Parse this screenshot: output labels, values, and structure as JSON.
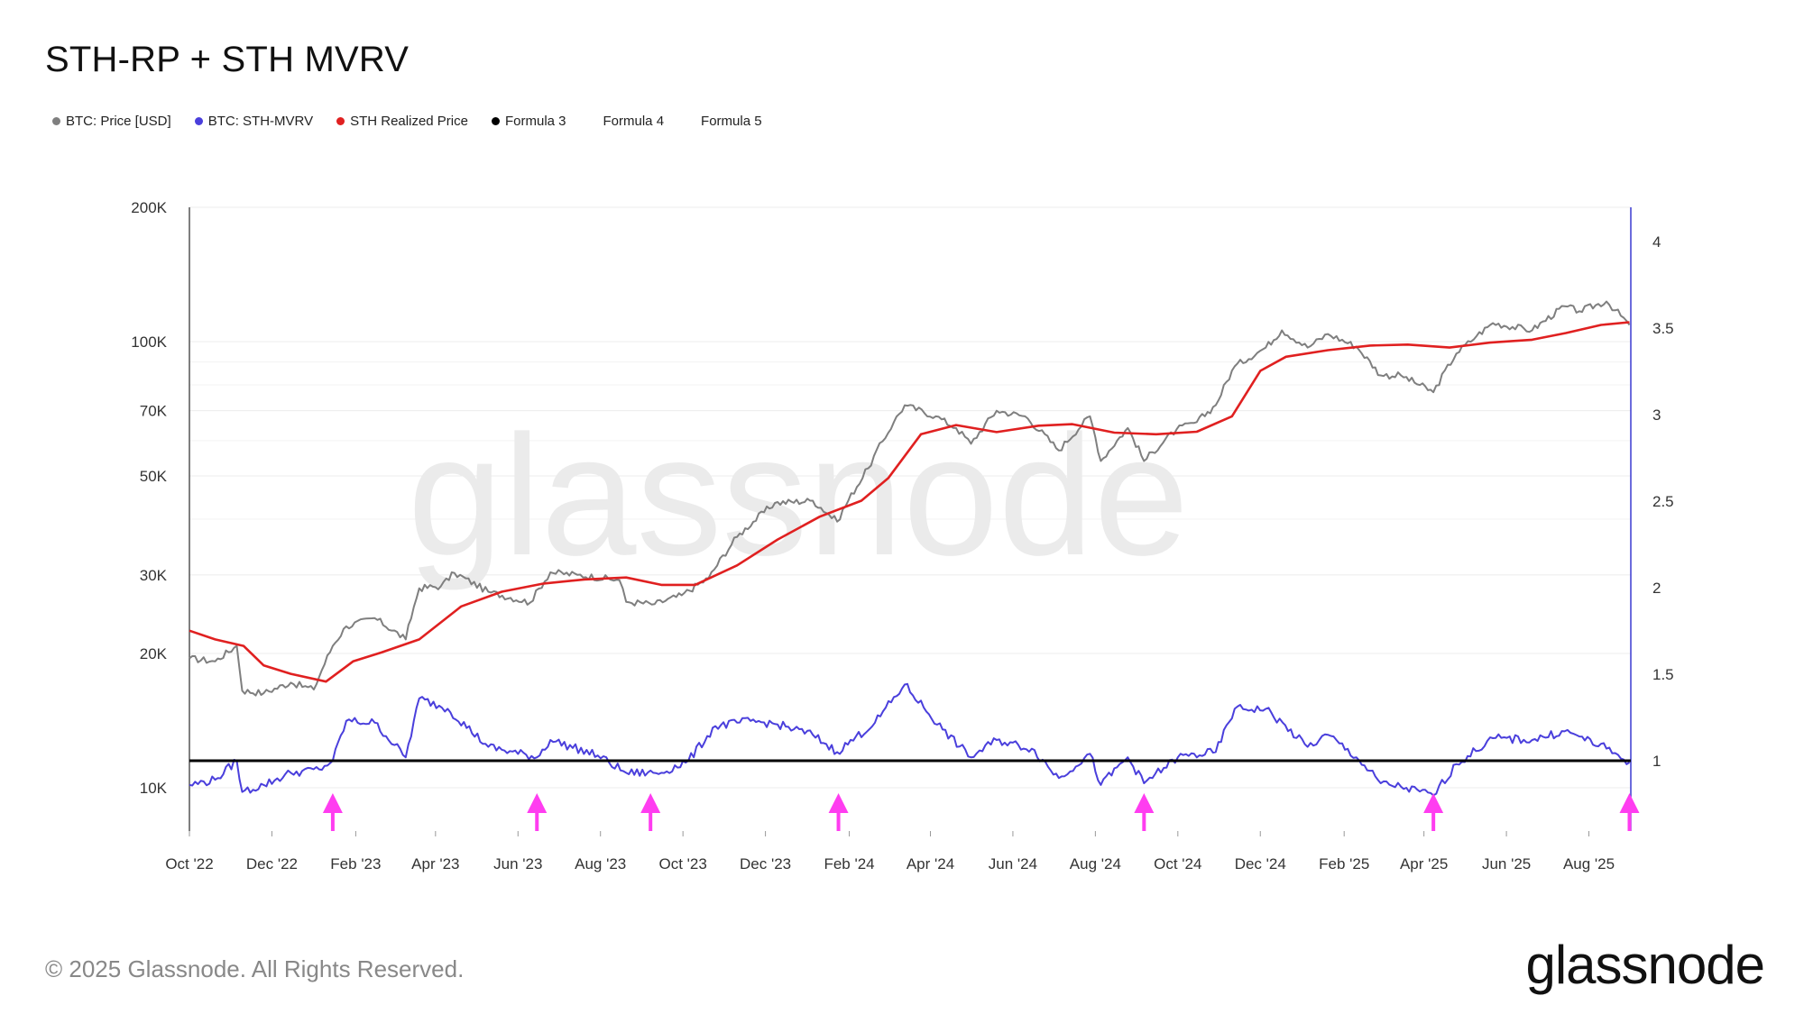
{
  "title": "STH-RP + STH MVRV",
  "legend": [
    {
      "label": "BTC: Price [USD]",
      "color": "#7f7f7f",
      "dot": true
    },
    {
      "label": "BTC: STH-MVRV",
      "color": "#4a3fdc",
      "dot": true
    },
    {
      "label": "STH Realized Price",
      "color": "#e02020",
      "dot": true
    },
    {
      "label": "Formula 3",
      "color": "#000000",
      "dot": true
    },
    {
      "label": "Formula 4",
      "color": "#000000",
      "dot": false
    },
    {
      "label": "Formula 5",
      "color": "#000000",
      "dot": false
    }
  ],
  "footer": "© 2025 Glassnode. All Rights Reserved.",
  "logo": "glassnode",
  "watermark": "glassnode",
  "chart_data": {
    "type": "line",
    "x_ticks": [
      "Oct '22",
      "Dec '22",
      "Feb '23",
      "Apr '23",
      "Jun '23",
      "Aug '23",
      "Oct '23",
      "Dec '23",
      "Feb '24",
      "Apr '24",
      "Jun '24",
      "Aug '24",
      "Oct '24",
      "Dec '24",
      "Feb '25",
      "Apr '25",
      "Jun '25",
      "Aug '25"
    ],
    "y_left": {
      "scale": "log",
      "ticks": [
        10000,
        20000,
        30000,
        50000,
        70000,
        100000,
        200000
      ],
      "tick_labels": [
        "10K",
        "20K",
        "30K",
        "50K",
        "70K",
        "100K",
        "200K"
      ]
    },
    "y_right": {
      "scale": "linear",
      "ticks": [
        1,
        1.5,
        2,
        2.5,
        3,
        3.5,
        4
      ],
      "tick_labels": [
        "1",
        "1.5",
        "2",
        "2.5",
        "3",
        "3.5",
        "4"
      ],
      "range": [
        0.7,
        4.2
      ]
    },
    "x_range": [
      "2022-10-01",
      "2025-09-01"
    ],
    "series": [
      {
        "name": "BTC: Price [USD]",
        "axis": "left",
        "color": "#7f7f7f",
        "x": [
          "2022-10-01",
          "2022-10-20",
          "2022-11-05",
          "2022-11-09",
          "2022-11-25",
          "2022-12-15",
          "2023-01-01",
          "2023-01-15",
          "2023-01-25",
          "2023-02-15",
          "2023-03-10",
          "2023-03-20",
          "2023-04-05",
          "2023-04-15",
          "2023-05-10",
          "2023-06-10",
          "2023-06-25",
          "2023-07-15",
          "2023-08-15",
          "2023-08-20",
          "2023-09-10",
          "2023-09-30",
          "2023-10-20",
          "2023-11-10",
          "2023-12-08",
          "2024-01-05",
          "2024-01-23",
          "2024-02-15",
          "2024-03-05",
          "2024-03-13",
          "2024-04-05",
          "2024-04-20",
          "2024-05-01",
          "2024-05-20",
          "2024-06-10",
          "2024-07-05",
          "2024-07-28",
          "2024-08-05",
          "2024-08-25",
          "2024-09-06",
          "2024-09-30",
          "2024-10-15",
          "2024-10-29",
          "2024-11-12",
          "2024-12-05",
          "2024-12-17",
          "2025-01-05",
          "2025-01-20",
          "2025-02-10",
          "2025-02-28",
          "2025-03-15",
          "2025-04-08",
          "2025-04-25",
          "2025-05-10",
          "2025-05-22",
          "2025-06-20",
          "2025-07-14",
          "2025-07-25",
          "2025-08-14",
          "2025-08-31"
        ],
        "y": [
          19500,
          19200,
          20800,
          16500,
          16300,
          17200,
          16600,
          20800,
          23000,
          24000,
          21500,
          28000,
          28300,
          30300,
          27500,
          26000,
          30400,
          30000,
          29200,
          26100,
          25800,
          27000,
          29500,
          36500,
          43500,
          44000,
          39500,
          52000,
          66000,
          72000,
          68000,
          64000,
          59000,
          70000,
          68000,
          57000,
          68000,
          54000,
          64000,
          54000,
          63500,
          66000,
          72000,
          88000,
          97000,
          106000,
          97000,
          104000,
          97500,
          84000,
          84000,
          77000,
          94000,
          103000,
          110000,
          106000,
          120000,
          117000,
          123000,
          109000
        ]
      },
      {
        "name": "STH Realized Price",
        "axis": "left",
        "color": "#e02020",
        "x": [
          "2022-10-01",
          "2022-10-20",
          "2022-11-10",
          "2022-11-25",
          "2022-12-15",
          "2023-01-10",
          "2023-01-30",
          "2023-02-20",
          "2023-03-20",
          "2023-04-20",
          "2023-05-20",
          "2023-06-20",
          "2023-07-20",
          "2023-08-20",
          "2023-09-15",
          "2023-10-10",
          "2023-11-10",
          "2023-12-10",
          "2024-01-10",
          "2024-02-10",
          "2024-03-01",
          "2024-03-25",
          "2024-04-20",
          "2024-05-20",
          "2024-06-20",
          "2024-07-15",
          "2024-08-15",
          "2024-09-15",
          "2024-10-15",
          "2024-11-10",
          "2024-12-01",
          "2024-12-20",
          "2025-01-20",
          "2025-02-20",
          "2025-03-20",
          "2025-04-20",
          "2025-05-20",
          "2025-06-20",
          "2025-07-15",
          "2025-08-10",
          "2025-08-31"
        ],
        "y": [
          22500,
          21500,
          20800,
          18800,
          18000,
          17300,
          19200,
          20100,
          21500,
          25500,
          27500,
          28700,
          29300,
          29600,
          28500,
          28500,
          31500,
          36000,
          40500,
          44000,
          49500,
          62000,
          65000,
          62700,
          64800,
          65300,
          62500,
          62000,
          62800,
          68000,
          86000,
          92500,
          95700,
          98000,
          98500,
          97000,
          99500,
          101000,
          104500,
          109000,
          110500
        ]
      },
      {
        "name": "BTC: STH-MVRV",
        "axis": "right",
        "color": "#4a3fdc",
        "x": [
          "2022-10-01",
          "2022-10-20",
          "2022-11-05",
          "2022-11-09",
          "2022-11-25",
          "2022-12-15",
          "2023-01-05",
          "2023-01-15",
          "2023-01-25",
          "2023-02-15",
          "2023-03-10",
          "2023-03-20",
          "2023-04-10",
          "2023-05-10",
          "2023-06-15",
          "2023-06-25",
          "2023-07-30",
          "2023-08-20",
          "2023-09-15",
          "2023-10-05",
          "2023-10-25",
          "2023-11-20",
          "2023-12-10",
          "2024-01-05",
          "2024-01-23",
          "2024-02-20",
          "2024-03-13",
          "2024-04-10",
          "2024-05-01",
          "2024-05-20",
          "2024-06-15",
          "2024-07-05",
          "2024-07-28",
          "2024-08-05",
          "2024-08-25",
          "2024-09-06",
          "2024-10-01",
          "2024-10-29",
          "2024-11-12",
          "2024-12-05",
          "2025-01-05",
          "2025-01-20",
          "2025-02-10",
          "2025-02-28",
          "2025-03-15",
          "2025-04-08",
          "2025-04-25",
          "2025-05-22",
          "2025-06-20",
          "2025-07-14",
          "2025-07-25",
          "2025-08-14",
          "2025-08-31"
        ],
        "y": [
          0.86,
          0.89,
          1.0,
          0.82,
          0.86,
          0.93,
          0.95,
          1.0,
          1.23,
          1.22,
          1.02,
          1.36,
          1.3,
          1.08,
          1.02,
          1.12,
          1.03,
          0.93,
          0.93,
          1.0,
          1.2,
          1.23,
          1.21,
          1.15,
          1.05,
          1.22,
          1.44,
          1.18,
          1.02,
          1.12,
          1.07,
          0.9,
          1.04,
          0.86,
          1.02,
          0.87,
          1.02,
          1.05,
          1.3,
          1.3,
          1.08,
          1.15,
          1.02,
          0.87,
          0.85,
          0.8,
          0.98,
          1.13,
          1.12,
          1.17,
          1.14,
          1.07,
          0.99
        ]
      },
      {
        "name": "Formula 3",
        "axis": "right",
        "color": "#000000",
        "x": [
          "2022-10-01",
          "2025-09-01"
        ],
        "y": [
          1.0,
          1.0
        ]
      }
    ],
    "arrow_markers": [
      "2023-01-15",
      "2023-06-15",
      "2023-09-07",
      "2024-01-24",
      "2024-09-06",
      "2025-04-08",
      "2025-08-31"
    ]
  }
}
